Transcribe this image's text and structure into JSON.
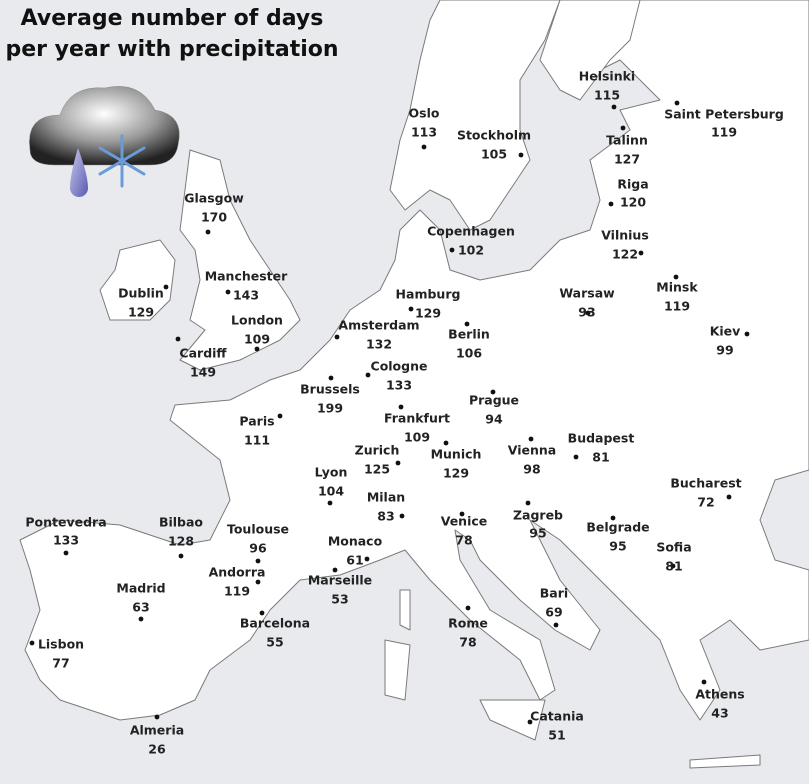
{
  "header": {
    "title": [
      "Average number of days",
      "per year with precipitation"
    ]
  },
  "cities": [
    {
      "name": "Helsinki",
      "days": 115
    },
    {
      "name": "Saint Petersburg",
      "days": 119
    },
    {
      "name": "Oslo",
      "days": 113
    },
    {
      "name": "Stockholm",
      "days": 105
    },
    {
      "name": "Talinn",
      "days": 127
    },
    {
      "name": "Riga",
      "days": 120
    },
    {
      "name": "Copenhagen",
      "days": 102
    },
    {
      "name": "Vilnius",
      "days": 122
    },
    {
      "name": "Glasgow",
      "days": 170
    },
    {
      "name": "Manchester",
      "days": 143
    },
    {
      "name": "Dublin",
      "days": 129
    },
    {
      "name": "London",
      "days": 109
    },
    {
      "name": "Cardiff",
      "days": 149
    },
    {
      "name": "Hamburg",
      "days": 129
    },
    {
      "name": "Berlin",
      "days": 106
    },
    {
      "name": "Amsterdam",
      "days": 132
    },
    {
      "name": "Minsk",
      "days": 119
    },
    {
      "name": "Warsaw",
      "days": 93
    },
    {
      "name": "Kiev",
      "days": 99
    },
    {
      "name": "Cologne",
      "days": 133
    },
    {
      "name": "Brussels",
      "days": 199
    },
    {
      "name": "Prague",
      "days": 94
    },
    {
      "name": "Paris",
      "days": 111
    },
    {
      "name": "Frankfurt",
      "days": 109
    },
    {
      "name": "Munich",
      "days": 129
    },
    {
      "name": "Vienna",
      "days": 98
    },
    {
      "name": "Budapest",
      "days": 81
    },
    {
      "name": "Zurich",
      "days": 125
    },
    {
      "name": "Lyon",
      "days": 104
    },
    {
      "name": "Milan",
      "days": 83
    },
    {
      "name": "Bucharest",
      "days": 72
    },
    {
      "name": "Pontevedra",
      "days": 133
    },
    {
      "name": "Bilbao",
      "days": 128
    },
    {
      "name": "Toulouse",
      "days": 96
    },
    {
      "name": "Venice",
      "days": 78
    },
    {
      "name": "Zagreb",
      "days": 95
    },
    {
      "name": "Belgrade",
      "days": 95
    },
    {
      "name": "Monaco",
      "days": 61
    },
    {
      "name": "Sofia",
      "days": 81
    },
    {
      "name": "Andorra",
      "days": 119
    },
    {
      "name": "Marseille",
      "days": 53
    },
    {
      "name": "Madrid",
      "days": 63
    },
    {
      "name": "Bari",
      "days": 69
    },
    {
      "name": "Barcelona",
      "days": 55
    },
    {
      "name": "Rome",
      "days": 78
    },
    {
      "name": "Lisbon",
      "days": 77
    },
    {
      "name": "Athens",
      "days": 43
    },
    {
      "name": "Catania",
      "days": 51
    },
    {
      "name": "Almeria",
      "days": 26
    }
  ]
}
